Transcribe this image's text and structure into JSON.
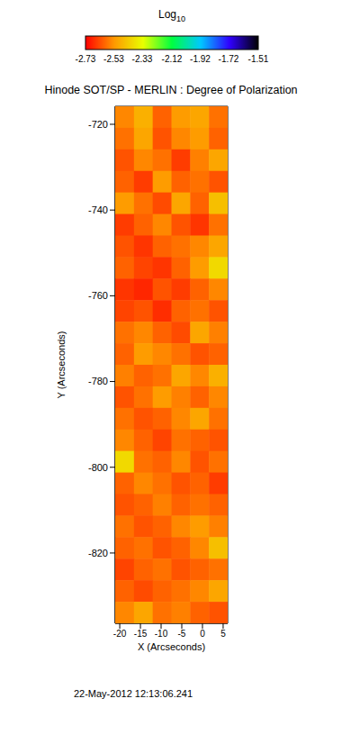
{
  "chart_data": {
    "type": "heatmap",
    "title": "Hinode SOT/SP - MERLIN : Degree of Polarization",
    "x_label": "X (Arcseconds)",
    "y_label": "Y (Arcseconds)",
    "annotation": "22-May-2012 12:13:06.241",
    "xlim": [
      -21.1,
      6.1
    ],
    "xticks": [
      -20,
      -15,
      -10,
      -5,
      0,
      5
    ],
    "ylim": [
      -836.4,
      -715.8
    ],
    "yticks": [
      -820,
      -800,
      -780,
      -760,
      -740,
      -720
    ],
    "grid": false,
    "x": [
      -18.83,
      -14.3,
      -9.77,
      -5.23,
      -0.7,
      3.83
    ],
    "y": [
      -718.31,
      -723.34,
      -728.36,
      -733.39,
      -738.41,
      -743.44,
      -748.46,
      -753.49,
      -758.51,
      -763.54,
      -768.56,
      -773.59,
      -778.61,
      -783.64,
      -788.66,
      -793.69,
      -798.71,
      -803.74,
      -808.76,
      -813.79,
      -818.81,
      -823.84,
      -828.86,
      -833.89
    ],
    "values": [
      [
        -2.55,
        -2.48,
        -2.6,
        -2.52,
        -2.5,
        -2.58
      ],
      [
        -2.58,
        -2.5,
        -2.62,
        -2.55,
        -2.52,
        -2.6
      ],
      [
        -2.62,
        -2.55,
        -2.58,
        -2.65,
        -2.56,
        -2.5
      ],
      [
        -2.6,
        -2.65,
        -2.52,
        -2.6,
        -2.58,
        -2.62
      ],
      [
        -2.52,
        -2.58,
        -2.63,
        -2.5,
        -2.6,
        -2.45
      ],
      [
        -2.65,
        -2.6,
        -2.55,
        -2.62,
        -2.66,
        -2.58
      ],
      [
        -2.62,
        -2.66,
        -2.6,
        -2.58,
        -2.55,
        -2.5
      ],
      [
        -2.6,
        -2.64,
        -2.66,
        -2.6,
        -2.52,
        -2.4
      ],
      [
        -2.66,
        -2.68,
        -2.62,
        -2.65,
        -2.6,
        -2.55
      ],
      [
        -2.64,
        -2.62,
        -2.67,
        -2.6,
        -2.58,
        -2.62
      ],
      [
        -2.58,
        -2.55,
        -2.6,
        -2.63,
        -2.5,
        -2.56
      ],
      [
        -2.6,
        -2.52,
        -2.55,
        -2.58,
        -2.62,
        -2.6
      ],
      [
        -2.56,
        -2.6,
        -2.58,
        -2.5,
        -2.55,
        -2.48
      ],
      [
        -2.62,
        -2.58,
        -2.52,
        -2.56,
        -2.6,
        -2.55
      ],
      [
        -2.58,
        -2.62,
        -2.6,
        -2.55,
        -2.5,
        -2.58
      ],
      [
        -2.55,
        -2.6,
        -2.64,
        -2.58,
        -2.6,
        -2.62
      ],
      [
        -2.4,
        -2.58,
        -2.6,
        -2.55,
        -2.62,
        -2.58
      ],
      [
        -2.6,
        -2.55,
        -2.58,
        -2.62,
        -2.6,
        -2.65
      ],
      [
        -2.62,
        -2.6,
        -2.56,
        -2.6,
        -2.58,
        -2.6
      ],
      [
        -2.58,
        -2.62,
        -2.6,
        -2.55,
        -2.52,
        -2.56
      ],
      [
        -2.6,
        -2.58,
        -2.62,
        -2.6,
        -2.55,
        -2.45
      ],
      [
        -2.64,
        -2.6,
        -2.58,
        -2.62,
        -2.6,
        -2.58
      ],
      [
        -2.6,
        -2.63,
        -2.6,
        -2.58,
        -2.55,
        -2.5
      ],
      [
        -2.55,
        -2.5,
        -2.58,
        -2.56,
        -2.6,
        -2.62
      ]
    ],
    "colorbar": {
      "label": "Log10",
      "range": [
        -2.73,
        -1.51
      ],
      "ticks": [
        -2.73,
        -2.53,
        -2.33,
        -2.12,
        -1.92,
        -1.72,
        -1.51
      ],
      "colors": [
        "#ff0000",
        "#ff9900",
        "#e8ff00",
        "#00ff40",
        "#00c8ff",
        "#3000ff",
        "#000000"
      ]
    }
  }
}
